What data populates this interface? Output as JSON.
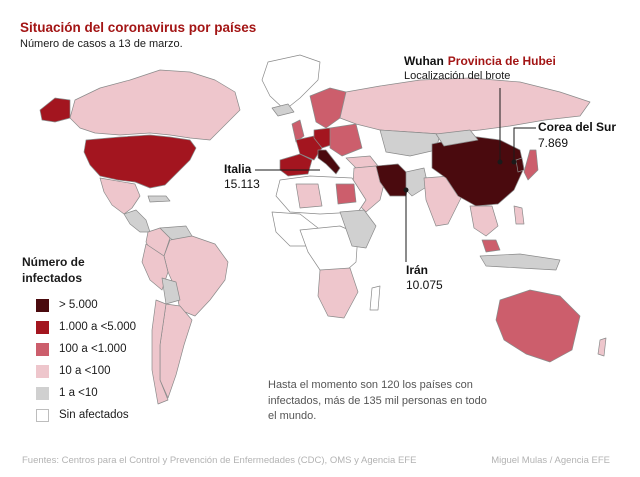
{
  "header": {
    "title": "Situación del coronavirus por países",
    "subtitle": "Número de casos a 13 de marzo."
  },
  "callouts": {
    "wuhan": {
      "name": "Wuhan",
      "province": "Provincia de Hubei",
      "sub": "Localización del brote"
    },
    "corea": {
      "name": "Corea del Sur",
      "value": "7.869"
    },
    "italia": {
      "name": "Italia",
      "value": "15.113"
    },
    "iran": {
      "name": "Irán",
      "value": "10.075"
    }
  },
  "legend": {
    "title_line1": "Número de",
    "title_line2": "infectados",
    "items": [
      {
        "label": "> 5.000",
        "color": "#4a0a0e"
      },
      {
        "label": "1.000 a <5.000",
        "color": "#a3151f"
      },
      {
        "label": "100 a <1.000",
        "color": "#cc5e6c"
      },
      {
        "label": "10 a <100",
        "color": "#eec6cc"
      },
      {
        "label": "1 a <10",
        "color": "#d0d0d0"
      },
      {
        "label": "Sin afectados",
        "color": "#ffffff"
      }
    ]
  },
  "note": "Hasta el momento son 120 los países con infectados, más de 135 mil personas en todo el mundo.",
  "footer": {
    "sources": "Fuentes: Centros para el Control y Prevención de Enfermedades (CDC), OMS y Agencia EFE",
    "credit": "Miguel Mulas / Agencia EFE"
  },
  "map_colors": {
    "highest": "#4a0a0e",
    "high": "#a3151f",
    "medium": "#cc5e6c",
    "low": "#eec6cc",
    "minimal": "#d0d0d0",
    "none": "#ffffff",
    "border": "#8a8a8a"
  }
}
